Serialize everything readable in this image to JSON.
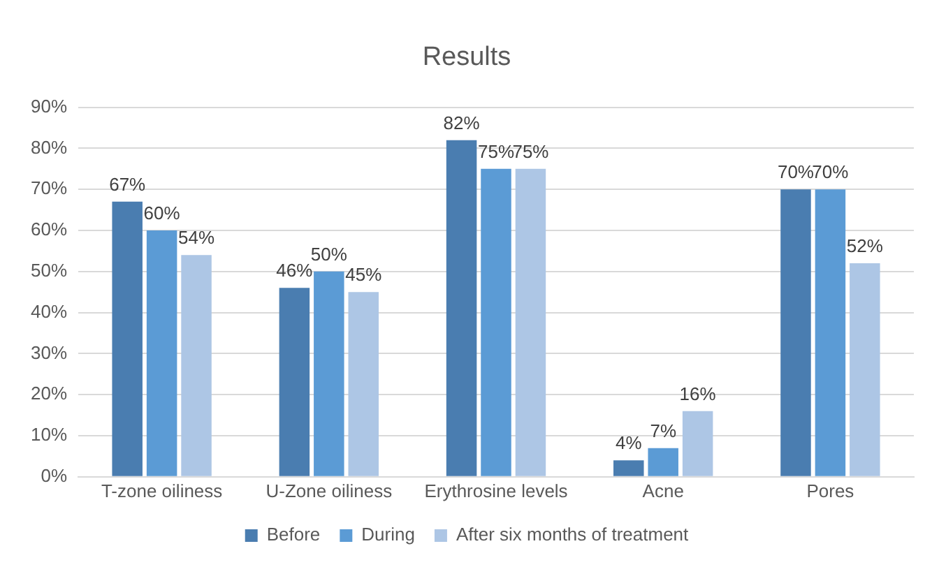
{
  "chart_data": {
    "type": "bar",
    "title": "Results",
    "categories": [
      "T-zone oiliness",
      "U-Zone oiliness",
      "Erythrosine levels",
      "Acne",
      "Pores"
    ],
    "series": [
      {
        "name": "Before",
        "color": "#4a7db0",
        "values": [
          67,
          46,
          82,
          4,
          70
        ],
        "value_labels": [
          "67%",
          "46%",
          "82%",
          "4%",
          "70%"
        ]
      },
      {
        "name": "During",
        "color": "#5b9bd5",
        "values": [
          60,
          50,
          75,
          7,
          70
        ],
        "value_labels": [
          "60%",
          "50%",
          "75%",
          "7%",
          "70%"
        ]
      },
      {
        "name": "After six months of treatment",
        "color": "#adc6e5",
        "values": [
          54,
          45,
          75,
          16,
          52
        ],
        "value_labels": [
          "54%",
          "45%",
          "75%",
          "16%",
          "52%"
        ]
      }
    ],
    "ylim": [
      0,
      90
    ],
    "yticks": [
      {
        "value": 0,
        "label": "0%"
      },
      {
        "value": 10,
        "label": "10%"
      },
      {
        "value": 20,
        "label": "20%"
      },
      {
        "value": 30,
        "label": "30%"
      },
      {
        "value": 40,
        "label": "40%"
      },
      {
        "value": 50,
        "label": "50%"
      },
      {
        "value": 60,
        "label": "60%"
      },
      {
        "value": 70,
        "label": "70%"
      },
      {
        "value": 80,
        "label": "80%"
      },
      {
        "value": 90,
        "label": "90%"
      }
    ],
    "grid": "y",
    "legend": "bottom"
  }
}
